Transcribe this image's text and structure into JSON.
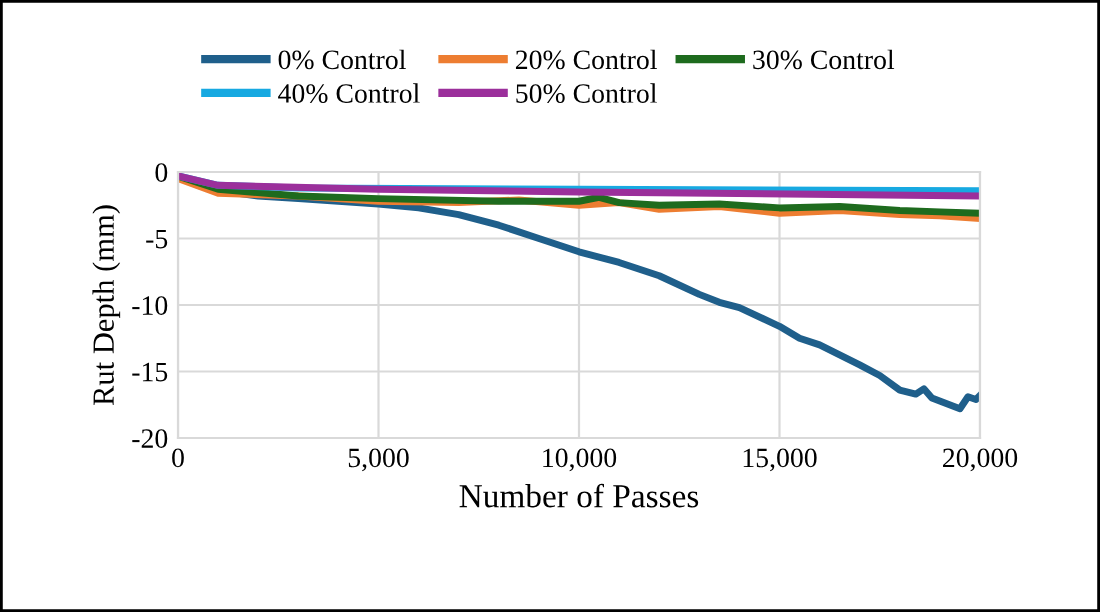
{
  "chart_data": {
    "type": "line",
    "xlabel": "Number of Passes",
    "ylabel": "Rut Depth (mm)",
    "xlim": [
      0,
      20000
    ],
    "ylim": [
      -20,
      0
    ],
    "xticks": [
      {
        "value": 0,
        "label": "0"
      },
      {
        "value": 5000,
        "label": "5,000"
      },
      {
        "value": 10000,
        "label": "10,000"
      },
      {
        "value": 15000,
        "label": "15,000"
      },
      {
        "value": 20000,
        "label": "20,000"
      }
    ],
    "yticks": [
      -20,
      -15,
      -10,
      -5,
      0
    ],
    "grid": true,
    "legend": "top",
    "marker": "none",
    "line_style": "solid",
    "series": [
      {
        "name": "0% Control",
        "color": "#1f5f8b",
        "x": [
          0,
          500,
          1000,
          2000,
          3000,
          4000,
          5000,
          6000,
          7000,
          8000,
          9000,
          10000,
          11000,
          12000,
          13000,
          13500,
          14000,
          15000,
          15500,
          16000,
          17000,
          17500,
          18000,
          18400,
          18600,
          18800,
          19500,
          19700,
          19900,
          20000
        ],
        "values": [
          -0.3,
          -1.0,
          -1.4,
          -1.8,
          -2.0,
          -2.2,
          -2.4,
          -2.7,
          -3.2,
          -4.0,
          -5.0,
          -6.0,
          -6.8,
          -7.8,
          -9.2,
          -9.8,
          -10.2,
          -11.6,
          -12.5,
          -13.0,
          -14.5,
          -15.3,
          -16.4,
          -16.7,
          -16.3,
          -17.0,
          -17.8,
          -16.9,
          -17.1,
          -16.8
        ]
      },
      {
        "name": "20% Control",
        "color": "#ed7d31",
        "x": [
          0,
          1000,
          3000,
          5000,
          7000,
          8500,
          10000,
          11000,
          12000,
          13500,
          15000,
          16500,
          18000,
          19000,
          20000
        ],
        "values": [
          -0.5,
          -1.6,
          -1.8,
          -2.2,
          -2.3,
          -2.1,
          -2.5,
          -2.3,
          -2.8,
          -2.6,
          -3.1,
          -2.9,
          -3.2,
          -3.3,
          -3.5
        ]
      },
      {
        "name": "30% Control",
        "color": "#1e6b1e",
        "x": [
          0,
          1000,
          3000,
          5000,
          8000,
          10000,
          10500,
          11000,
          12000,
          13500,
          15000,
          16500,
          18000,
          19000,
          20000
        ],
        "values": [
          -0.3,
          -1.3,
          -1.8,
          -2.0,
          -2.2,
          -2.2,
          -1.9,
          -2.3,
          -2.5,
          -2.4,
          -2.7,
          -2.6,
          -2.9,
          -3.0,
          -3.1
        ]
      },
      {
        "name": "40% Control",
        "color": "#17a9e1",
        "x": [
          0,
          1000,
          3000,
          10000,
          20000
        ],
        "values": [
          -0.3,
          -1.0,
          -1.2,
          -1.3,
          -1.4
        ]
      },
      {
        "name": "50% Control",
        "color": "#9b2f9b",
        "x": [
          0,
          1000,
          5000,
          10000,
          20000
        ],
        "values": [
          -0.3,
          -1.0,
          -1.3,
          -1.5,
          -1.8
        ]
      }
    ]
  }
}
